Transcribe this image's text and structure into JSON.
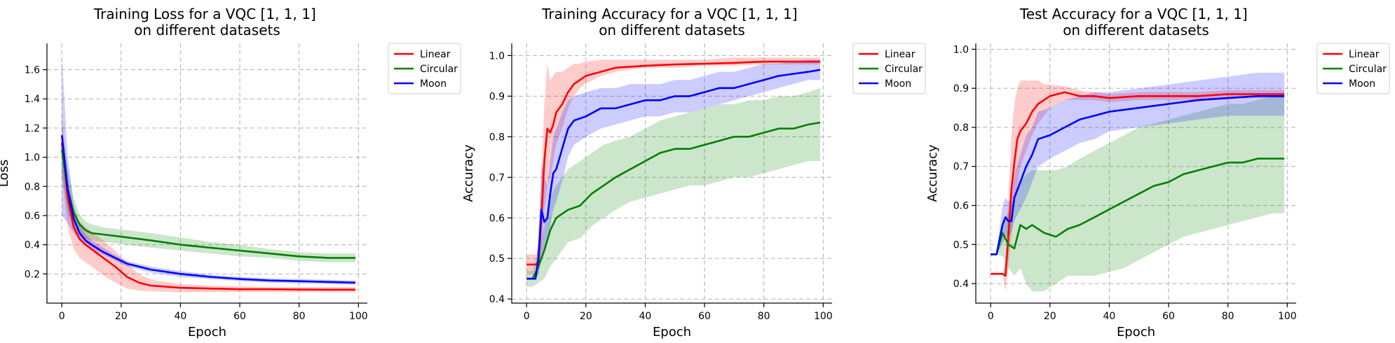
{
  "chart_data": [
    {
      "type": "line",
      "title": "Training Loss for a VQC [1, 1, 1]\non different datasets",
      "xlabel": "Epoch",
      "ylabel": "Loss",
      "xlim": [
        -5,
        103
      ],
      "ylim": [
        0.0,
        1.78
      ],
      "xticks": [
        0,
        20,
        40,
        60,
        80,
        100
      ],
      "yticks": [
        0.2,
        0.4,
        0.6,
        0.8,
        1.0,
        1.2,
        1.4,
        1.6
      ],
      "ytick_labels": [
        "0.2",
        "0.4",
        "0.6",
        "0.8",
        "1.0",
        "1.2",
        "1.4",
        "1.6"
      ],
      "grid": true,
      "legend": "outside-top-right",
      "series": [
        {
          "name": "Linear",
          "color": "#ff0000",
          "x": [
            0,
            2,
            4,
            6,
            8,
            10,
            14,
            18,
            22,
            26,
            30,
            40,
            50,
            60,
            70,
            80,
            90,
            99
          ],
          "y": [
            1.1,
            0.72,
            0.52,
            0.44,
            0.4,
            0.37,
            0.31,
            0.25,
            0.18,
            0.14,
            0.12,
            0.105,
            0.1,
            0.095,
            0.095,
            0.093,
            0.092,
            0.092
          ],
          "lower": [
            0.88,
            0.52,
            0.37,
            0.31,
            0.28,
            0.25,
            0.19,
            0.14,
            0.1,
            0.085,
            0.08,
            0.075,
            0.075,
            0.075,
            0.075,
            0.075,
            0.075,
            0.075
          ],
          "upper": [
            1.3,
            0.85,
            0.64,
            0.56,
            0.52,
            0.49,
            0.43,
            0.36,
            0.27,
            0.2,
            0.16,
            0.13,
            0.12,
            0.115,
            0.11,
            0.11,
            0.11,
            0.11
          ]
        },
        {
          "name": "Circular",
          "color": "#008000",
          "x": [
            0,
            2,
            4,
            6,
            8,
            10,
            14,
            18,
            22,
            26,
            30,
            40,
            50,
            60,
            70,
            80,
            90,
            99
          ],
          "y": [
            1.05,
            0.78,
            0.62,
            0.54,
            0.5,
            0.48,
            0.47,
            0.46,
            0.45,
            0.44,
            0.43,
            0.4,
            0.38,
            0.36,
            0.34,
            0.32,
            0.31,
            0.31
          ],
          "lower": [
            0.88,
            0.63,
            0.53,
            0.47,
            0.44,
            0.43,
            0.42,
            0.41,
            0.4,
            0.39,
            0.38,
            0.36,
            0.34,
            0.32,
            0.31,
            0.29,
            0.28,
            0.28
          ],
          "upper": [
            1.2,
            0.93,
            0.72,
            0.61,
            0.56,
            0.54,
            0.52,
            0.51,
            0.5,
            0.49,
            0.48,
            0.45,
            0.42,
            0.4,
            0.37,
            0.35,
            0.34,
            0.34
          ]
        },
        {
          "name": "Moon",
          "color": "#0000ff",
          "x": [
            0,
            2,
            4,
            6,
            8,
            10,
            14,
            18,
            22,
            26,
            30,
            40,
            50,
            60,
            70,
            80,
            90,
            99
          ],
          "y": [
            1.15,
            0.78,
            0.58,
            0.48,
            0.43,
            0.4,
            0.35,
            0.31,
            0.27,
            0.25,
            0.23,
            0.2,
            0.18,
            0.165,
            0.155,
            0.15,
            0.145,
            0.14
          ],
          "lower": [
            0.6,
            0.55,
            0.48,
            0.43,
            0.4,
            0.37,
            0.33,
            0.29,
            0.25,
            0.23,
            0.21,
            0.18,
            0.165,
            0.15,
            0.14,
            0.135,
            0.13,
            0.125
          ],
          "upper": [
            1.7,
            1.0,
            0.68,
            0.53,
            0.47,
            0.43,
            0.38,
            0.33,
            0.29,
            0.27,
            0.25,
            0.22,
            0.195,
            0.18,
            0.17,
            0.165,
            0.16,
            0.155
          ]
        }
      ]
    },
    {
      "type": "line",
      "title": "Training Accuracy for a VQC [1, 1, 1]\non different datasets",
      "xlabel": "Epoch",
      "ylabel": "Accuracy",
      "xlim": [
        -5,
        103
      ],
      "ylim": [
        0.39,
        1.03
      ],
      "xticks": [
        0,
        20,
        40,
        60,
        80,
        100
      ],
      "yticks": [
        0.4,
        0.5,
        0.6,
        0.7,
        0.8,
        0.9,
        1.0
      ],
      "ytick_labels": [
        "0.4",
        "0.5",
        "0.6",
        "0.7",
        "0.8",
        "0.9",
        "1.0"
      ],
      "grid": true,
      "legend": "outside-top-right",
      "series": [
        {
          "name": "Linear",
          "color": "#ff0000",
          "x": [
            0,
            2,
            3,
            4,
            5,
            6,
            7,
            8,
            9,
            10,
            11,
            12,
            14,
            16,
            18,
            20,
            25,
            30,
            40,
            50,
            60,
            70,
            80,
            90,
            99
          ],
          "y": [
            0.485,
            0.485,
            0.485,
            0.49,
            0.6,
            0.74,
            0.82,
            0.81,
            0.83,
            0.86,
            0.87,
            0.88,
            0.91,
            0.93,
            0.94,
            0.95,
            0.96,
            0.97,
            0.975,
            0.978,
            0.98,
            0.982,
            0.985,
            0.985,
            0.985
          ],
          "lower": [
            0.46,
            0.46,
            0.46,
            0.46,
            0.52,
            0.62,
            0.68,
            0.7,
            0.74,
            0.78,
            0.8,
            0.82,
            0.87,
            0.9,
            0.92,
            0.93,
            0.95,
            0.96,
            0.97,
            0.97,
            0.975,
            0.975,
            0.978,
            0.978,
            0.978
          ],
          "upper": [
            0.51,
            0.51,
            0.51,
            0.53,
            0.7,
            0.88,
            0.98,
            0.94,
            0.95,
            0.96,
            0.96,
            0.96,
            0.97,
            0.98,
            0.98,
            0.985,
            0.99,
            0.99,
            0.99,
            0.99,
            0.99,
            0.995,
            0.995,
            0.995,
            0.995
          ]
        },
        {
          "name": "Circular",
          "color": "#008000",
          "x": [
            0,
            2,
            4,
            6,
            8,
            10,
            12,
            14,
            18,
            22,
            26,
            30,
            35,
            40,
            45,
            50,
            55,
            60,
            65,
            70,
            75,
            80,
            85,
            90,
            95,
            99
          ],
          "y": [
            0.45,
            0.45,
            0.48,
            0.52,
            0.57,
            0.6,
            0.61,
            0.62,
            0.63,
            0.66,
            0.68,
            0.7,
            0.72,
            0.74,
            0.76,
            0.77,
            0.77,
            0.78,
            0.79,
            0.8,
            0.8,
            0.81,
            0.82,
            0.82,
            0.83,
            0.835
          ],
          "lower": [
            0.43,
            0.43,
            0.44,
            0.45,
            0.48,
            0.5,
            0.52,
            0.54,
            0.55,
            0.58,
            0.6,
            0.62,
            0.64,
            0.65,
            0.66,
            0.67,
            0.68,
            0.68,
            0.69,
            0.7,
            0.7,
            0.71,
            0.72,
            0.73,
            0.74,
            0.74
          ],
          "upper": [
            0.47,
            0.47,
            0.52,
            0.58,
            0.65,
            0.68,
            0.7,
            0.72,
            0.74,
            0.76,
            0.78,
            0.79,
            0.8,
            0.82,
            0.84,
            0.85,
            0.86,
            0.87,
            0.88,
            0.88,
            0.89,
            0.89,
            0.9,
            0.9,
            0.91,
            0.92
          ]
        },
        {
          "name": "Moon",
          "color": "#0000ff",
          "x": [
            0,
            2,
            3,
            4,
            5,
            6,
            7,
            8,
            9,
            10,
            12,
            14,
            16,
            20,
            25,
            30,
            35,
            40,
            45,
            50,
            55,
            60,
            65,
            70,
            75,
            80,
            85,
            90,
            95,
            99
          ],
          "y": [
            0.45,
            0.45,
            0.45,
            0.5,
            0.62,
            0.59,
            0.6,
            0.66,
            0.71,
            0.72,
            0.77,
            0.82,
            0.84,
            0.85,
            0.87,
            0.87,
            0.88,
            0.89,
            0.89,
            0.9,
            0.9,
            0.91,
            0.92,
            0.92,
            0.93,
            0.94,
            0.95,
            0.955,
            0.96,
            0.965
          ],
          "lower": [
            0.45,
            0.45,
            0.45,
            0.46,
            0.5,
            0.52,
            0.54,
            0.58,
            0.62,
            0.64,
            0.69,
            0.75,
            0.78,
            0.8,
            0.82,
            0.83,
            0.84,
            0.85,
            0.85,
            0.86,
            0.86,
            0.87,
            0.88,
            0.89,
            0.9,
            0.91,
            0.92,
            0.93,
            0.94,
            0.94
          ],
          "upper": [
            0.45,
            0.45,
            0.46,
            0.56,
            0.74,
            0.7,
            0.68,
            0.74,
            0.8,
            0.82,
            0.86,
            0.89,
            0.9,
            0.91,
            0.92,
            0.92,
            0.93,
            0.93,
            0.93,
            0.94,
            0.94,
            0.95,
            0.96,
            0.96,
            0.97,
            0.98,
            0.98,
            0.985,
            0.99,
            0.99
          ]
        }
      ]
    },
    {
      "type": "line",
      "title": "Test Accuracy for a VQC [1, 1, 1]\non different datasets",
      "xlabel": "Epoch",
      "ylabel": "Accuracy",
      "xlim": [
        -5,
        103
      ],
      "ylim": [
        0.35,
        1.015
      ],
      "xticks": [
        0,
        20,
        40,
        60,
        80,
        100
      ],
      "yticks": [
        0.4,
        0.5,
        0.6,
        0.7,
        0.8,
        0.9,
        1.0
      ],
      "ytick_labels": [
        "0.4",
        "0.5",
        "0.6",
        "0.7",
        "0.8",
        "0.9",
        "1.0"
      ],
      "grid": true,
      "legend": "outside-top-right",
      "series": [
        {
          "name": "Linear",
          "color": "#ff0000",
          "x": [
            0,
            2,
            4,
            5,
            6,
            7,
            8,
            9,
            10,
            12,
            14,
            16,
            18,
            20,
            25,
            30,
            35,
            40,
            50,
            60,
            70,
            80,
            90,
            99
          ],
          "y": [
            0.425,
            0.425,
            0.425,
            0.42,
            0.52,
            0.64,
            0.71,
            0.77,
            0.79,
            0.81,
            0.84,
            0.86,
            0.87,
            0.88,
            0.89,
            0.88,
            0.88,
            0.875,
            0.88,
            0.88,
            0.88,
            0.885,
            0.885,
            0.885
          ],
          "lower": [
            0.425,
            0.425,
            0.425,
            0.38,
            0.44,
            0.52,
            0.6,
            0.65,
            0.7,
            0.74,
            0.78,
            0.81,
            0.83,
            0.85,
            0.87,
            0.87,
            0.87,
            0.865,
            0.87,
            0.87,
            0.87,
            0.875,
            0.875,
            0.875
          ],
          "upper": [
            0.425,
            0.425,
            0.425,
            0.46,
            0.62,
            0.78,
            0.86,
            0.9,
            0.92,
            0.92,
            0.92,
            0.92,
            0.91,
            0.91,
            0.905,
            0.895,
            0.89,
            0.885,
            0.89,
            0.89,
            0.89,
            0.895,
            0.895,
            0.895
          ]
        },
        {
          "name": "Circular",
          "color": "#008000",
          "x": [
            0,
            2,
            4,
            6,
            8,
            10,
            12,
            14,
            18,
            22,
            26,
            30,
            35,
            40,
            45,
            50,
            55,
            60,
            65,
            70,
            75,
            80,
            85,
            90,
            95,
            99
          ],
          "y": [
            0.475,
            0.475,
            0.53,
            0.5,
            0.49,
            0.55,
            0.54,
            0.55,
            0.53,
            0.52,
            0.54,
            0.55,
            0.57,
            0.59,
            0.61,
            0.63,
            0.65,
            0.66,
            0.68,
            0.69,
            0.7,
            0.71,
            0.71,
            0.72,
            0.72,
            0.72
          ],
          "lower": [
            0.475,
            0.475,
            0.47,
            0.44,
            0.42,
            0.44,
            0.4,
            0.38,
            0.38,
            0.4,
            0.42,
            0.42,
            0.42,
            0.43,
            0.44,
            0.46,
            0.48,
            0.5,
            0.52,
            0.53,
            0.54,
            0.55,
            0.56,
            0.57,
            0.58,
            0.58
          ],
          "upper": [
            0.475,
            0.475,
            0.56,
            0.58,
            0.62,
            0.66,
            0.68,
            0.69,
            0.69,
            0.69,
            0.7,
            0.72,
            0.74,
            0.76,
            0.78,
            0.8,
            0.81,
            0.82,
            0.83,
            0.84,
            0.85,
            0.86,
            0.86,
            0.87,
            0.88,
            0.88
          ]
        },
        {
          "name": "Moon",
          "color": "#0000ff",
          "x": [
            0,
            2,
            4,
            5,
            6,
            7,
            8,
            10,
            12,
            14,
            16,
            20,
            25,
            30,
            35,
            40,
            50,
            60,
            70,
            80,
            90,
            99
          ],
          "y": [
            0.475,
            0.475,
            0.55,
            0.57,
            0.56,
            0.56,
            0.62,
            0.66,
            0.7,
            0.73,
            0.77,
            0.78,
            0.8,
            0.82,
            0.83,
            0.84,
            0.85,
            0.86,
            0.87,
            0.875,
            0.88,
            0.88
          ],
          "lower": [
            0.475,
            0.475,
            0.5,
            0.52,
            0.52,
            0.53,
            0.56,
            0.59,
            0.62,
            0.66,
            0.7,
            0.72,
            0.74,
            0.76,
            0.77,
            0.79,
            0.8,
            0.81,
            0.82,
            0.83,
            0.83,
            0.83
          ],
          "upper": [
            0.475,
            0.475,
            0.6,
            0.62,
            0.61,
            0.62,
            0.68,
            0.73,
            0.78,
            0.8,
            0.84,
            0.85,
            0.87,
            0.88,
            0.89,
            0.89,
            0.9,
            0.91,
            0.92,
            0.93,
            0.94,
            0.94
          ]
        }
      ]
    }
  ]
}
